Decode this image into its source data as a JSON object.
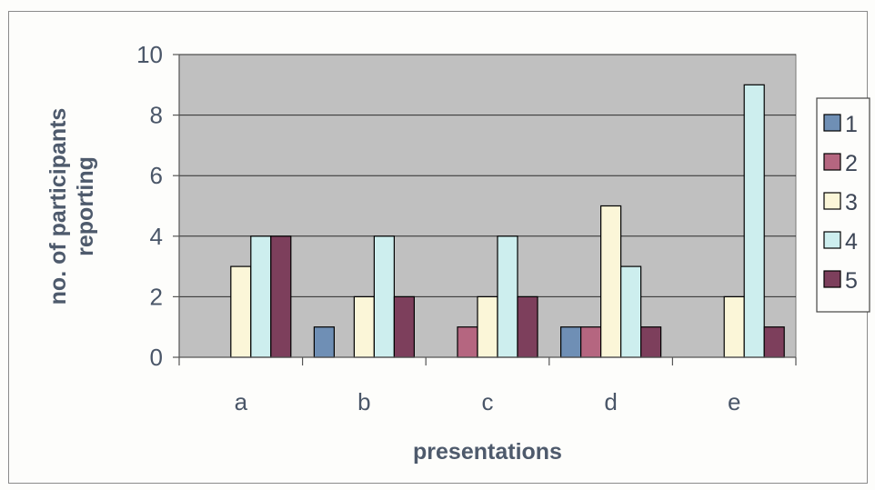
{
  "chart_data": {
    "type": "bar",
    "title": "",
    "xlabel": "presentations",
    "ylabel_lines": [
      "no. of participants",
      "reporting"
    ],
    "categories": [
      "a",
      "b",
      "c",
      "d",
      "e"
    ],
    "ylim": [
      0,
      10
    ],
    "yticks": [
      0,
      2,
      4,
      6,
      8,
      10
    ],
    "grid": true,
    "legend_position": "right",
    "series": [
      {
        "name": "1",
        "color": "#6f8fb5",
        "values": [
          0,
          1,
          0,
          1,
          0
        ]
      },
      {
        "name": "2",
        "color": "#b56680",
        "values": [
          0,
          0,
          1,
          1,
          0
        ]
      },
      {
        "name": "3",
        "color": "#fbf6d8",
        "values": [
          3,
          2,
          2,
          5,
          2
        ]
      },
      {
        "name": "4",
        "color": "#cdeeee",
        "values": [
          4,
          4,
          4,
          3,
          9
        ]
      },
      {
        "name": "5",
        "color": "#7d3f5c",
        "values": [
          4,
          2,
          2,
          1,
          1
        ]
      }
    ],
    "plot_background": "#c0c0c0"
  }
}
